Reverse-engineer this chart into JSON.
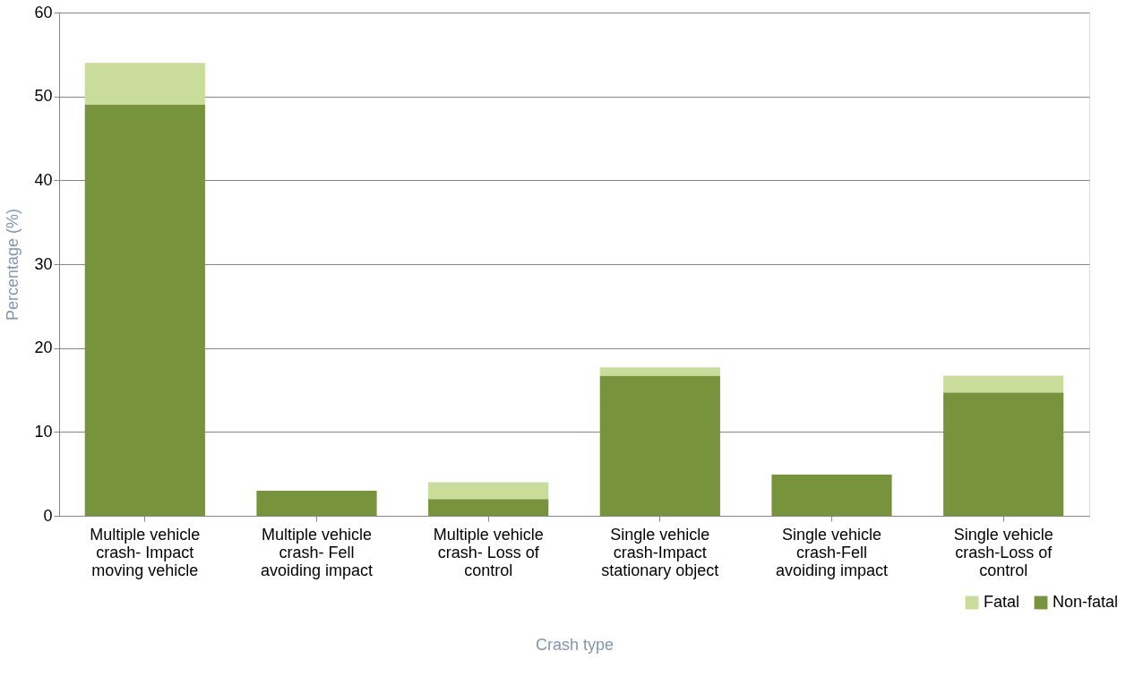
{
  "chart_data": {
    "type": "bar",
    "stacked": true,
    "xlabel": "Crash type",
    "ylabel": "Percentage (%)",
    "categories": [
      "Multiple vehicle crash- Impact moving vehicle",
      "Multiple vehicle crash- Fell avoiding impact",
      "Multiple vehicle crash- Loss of control",
      "Single vehicle crash-Impact stationary object",
      "Single vehicle crash-Fell avoiding impact",
      "Single vehicle crash-Loss of control"
    ],
    "series": [
      {
        "name": "Non-fatal",
        "color": "#77933c",
        "values": [
          49,
          3,
          2,
          16.7,
          4.9,
          14.7
        ]
      },
      {
        "name": "Fatal",
        "color": "#c9dc9a",
        "values": [
          5,
          0,
          2,
          1,
          0,
          2
        ]
      }
    ],
    "ylim": [
      0,
      60
    ],
    "yticks": [
      0,
      10,
      20,
      30,
      40,
      50,
      60
    ],
    "grid": "y",
    "legend": "bottom right"
  }
}
